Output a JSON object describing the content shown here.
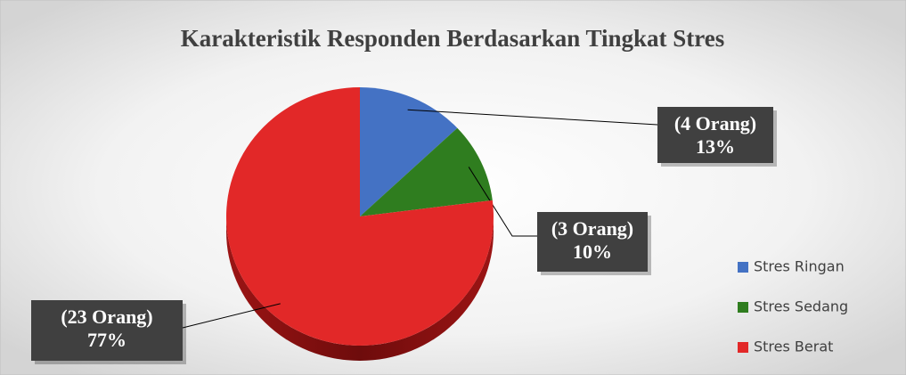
{
  "chart_data": {
    "type": "pie",
    "title": "Karakteristik Responden Berdasarkan Tingkat Stres",
    "categories": [
      "Stres Ringan",
      "Stres Sedang",
      "Stres Berat"
    ],
    "values": [
      13,
      10,
      77
    ],
    "value_labels": [
      "13%",
      "10%",
      "77%"
    ],
    "count_labels": [
      "(4 Orang)",
      "(3 Orang)",
      "(23 Orang)"
    ],
    "colors": [
      "#4472c4",
      "#2f7d1f",
      "#e22828"
    ],
    "legend": "right"
  }
}
